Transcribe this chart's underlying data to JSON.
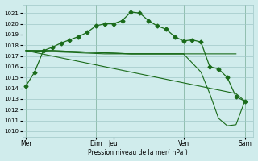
{
  "bg_color": "#d0ecec",
  "grid_color": "#a0c8c8",
  "line_color": "#1a6b1a",
  "marker": "D",
  "marker_size": 2.5,
  "xlabel": "Pression niveau de la mer( hPa )",
  "ylim": [
    1009.5,
    1021.8
  ],
  "xlim": [
    -0.2,
    13.0
  ],
  "xtick_positions": [
    0,
    4,
    5,
    9,
    12.5
  ],
  "xtick_labels": [
    "Mer",
    "Dim",
    "Jeu",
    "Ven",
    "Sam"
  ],
  "lines": {
    "main": {
      "x": [
        0,
        0.5,
        1.0,
        1.5,
        2.0,
        2.5,
        3.0,
        3.5,
        4.0,
        4.5,
        5.0,
        5.5,
        6.0,
        6.5,
        7.0,
        7.5,
        8.0,
        8.5,
        9.0,
        9.5,
        10.0,
        10.5,
        11.0,
        11.5,
        12.0,
        12.5
      ],
      "y": [
        1014.2,
        1015.5,
        1017.5,
        1017.8,
        1018.2,
        1018.5,
        1018.8,
        1019.2,
        1019.8,
        1020.0,
        1020.0,
        1020.3,
        1021.1,
        1021.0,
        1020.3,
        1019.8,
        1019.5,
        1018.8,
        1018.4,
        1018.5,
        1018.3,
        1016.0,
        1015.8,
        1015.0,
        1013.2,
        1012.8
      ]
    },
    "flat1": {
      "x": [
        0,
        1.5,
        3.0,
        4.5,
        6.0,
        7.5,
        9.0,
        10.5,
        12.0
      ],
      "y": [
        1017.5,
        1017.5,
        1017.4,
        1017.3,
        1017.2,
        1017.2,
        1017.2,
        1017.2,
        1017.2
      ]
    },
    "flat2": {
      "x": [
        0,
        1.5,
        3.0,
        4.5,
        6.0,
        7.5,
        9.0
      ],
      "y": [
        1017.5,
        1017.5,
        1017.4,
        1017.3,
        1017.2,
        1017.2,
        1017.2
      ]
    },
    "decline": {
      "x": [
        0,
        1.5,
        3.0,
        4.5,
        6.0,
        7.5,
        9.0,
        10.5,
        12.0,
        12.5
      ],
      "y": [
        1017.5,
        1017.0,
        1016.5,
        1016.0,
        1015.5,
        1015.0,
        1014.5,
        1014.0,
        1013.5,
        1012.8
      ]
    },
    "drop": {
      "x": [
        0,
        1.5,
        3.0,
        4.5,
        6.0,
        7.5,
        9.0,
        10.0,
        10.5,
        11.0,
        11.5,
        12.0,
        12.5
      ],
      "y": [
        1017.5,
        1017.4,
        1017.3,
        1017.2,
        1017.2,
        1017.2,
        1017.2,
        1015.5,
        1013.5,
        1011.2,
        1010.5,
        1010.6,
        1012.8
      ]
    }
  },
  "vline_positions": [
    0,
    4,
    5,
    9,
    12.5
  ]
}
